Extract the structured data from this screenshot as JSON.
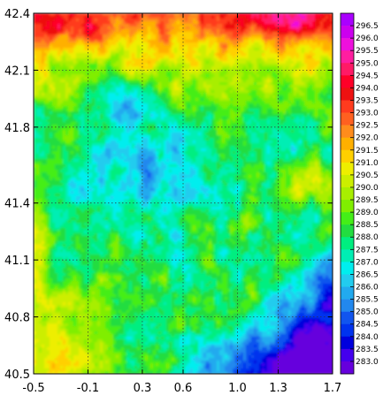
{
  "chart_data": {
    "type": "heatmap",
    "title": "",
    "xlabel": "",
    "ylabel": "",
    "xlim": [
      -0.5,
      1.7
    ],
    "ylim": [
      40.5,
      42.4
    ],
    "x_ticks": [
      "-0.5",
      "-0.1",
      "0.3",
      "0.6",
      "1.0",
      "1.3",
      "1.7"
    ],
    "x_tick_values": [
      -0.5,
      -0.1,
      0.3,
      0.6,
      1.0,
      1.3,
      1.7
    ],
    "y_ticks": [
      "42.4",
      "42.1",
      "41.8",
      "41.4",
      "41.1",
      "40.8",
      "40.5"
    ],
    "y_tick_values": [
      42.4,
      42.1,
      41.8,
      41.4,
      41.1,
      40.8,
      40.5
    ],
    "gridlines": {
      "x": [
        -0.1,
        0.3,
        0.6,
        1.0,
        1.3
      ],
      "y": [
        42.1,
        41.8,
        41.4,
        41.1,
        40.8
      ],
      "style": "dotted"
    },
    "colorbar": {
      "placement": "right",
      "labels": [
        "296.5",
        "296.0",
        "295.5",
        "295.0",
        "294.5",
        "294.0",
        "293.5",
        "293.0",
        "292.5",
        "292.0",
        "291.5",
        "291.0",
        "290.5",
        "290.0",
        "289.5",
        "289.0",
        "288.5",
        "288.0",
        "287.5",
        "287.0",
        "286.5",
        "286.0",
        "285.5",
        "285.0",
        "284.5",
        "284.0",
        "283.5",
        "283.0"
      ],
      "colors": [
        "#aa00ff",
        "#cc00ee",
        "#ee10dd",
        "#ff1ea0",
        "#ff1a66",
        "#ff0028",
        "#ee1111",
        "#ff3b1e",
        "#ff6020",
        "#ff8c1c",
        "#ffb000",
        "#ffd000",
        "#eeee00",
        "#ccee00",
        "#a8ee00",
        "#80ee00",
        "#44ee18",
        "#22dd40",
        "#00ee80",
        "#00eeb4",
        "#00eeee",
        "#22ccee",
        "#22aaee",
        "#2288ee",
        "#1155ee",
        "#0033ee",
        "#0000dd",
        "#4400ee",
        "#6600dd"
      ]
    }
  }
}
